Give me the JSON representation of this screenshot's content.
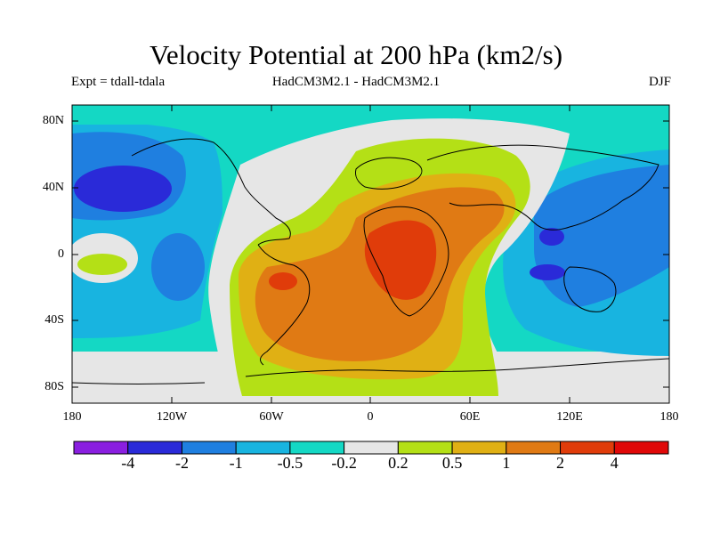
{
  "title": "Velocity Potential at 200 hPa (km2/s)",
  "subtitle_left": "Expt = tdall-tdala",
  "subtitle_center": "HadCM3M2.1 - HadCM3M2.1",
  "subtitle_right": "DJF",
  "lat_labels": [
    "80N",
    "40N",
    "0",
    "40S",
    "80S"
  ],
  "lon_labels": [
    "180",
    "120W",
    "60W",
    "0",
    "60E",
    "120E",
    "180"
  ],
  "colorbar": {
    "labels": [
      "-4",
      "-2",
      "-1",
      "-0.5",
      "-0.2",
      "0.2",
      "0.5",
      "1",
      "2",
      "4"
    ],
    "colors": [
      "#8a1fe0",
      "#2a2ad8",
      "#1f7fe0",
      "#18b4e0",
      "#14d8c4",
      "#e6e6e6",
      "#b4e016",
      "#e0b014",
      "#e07a14",
      "#e03c0a",
      "#e00808"
    ]
  },
  "colors": {
    "ocean_background": "#14d8c4",
    "neutral": "#e6e6e6",
    "coastline": "#000000"
  }
}
